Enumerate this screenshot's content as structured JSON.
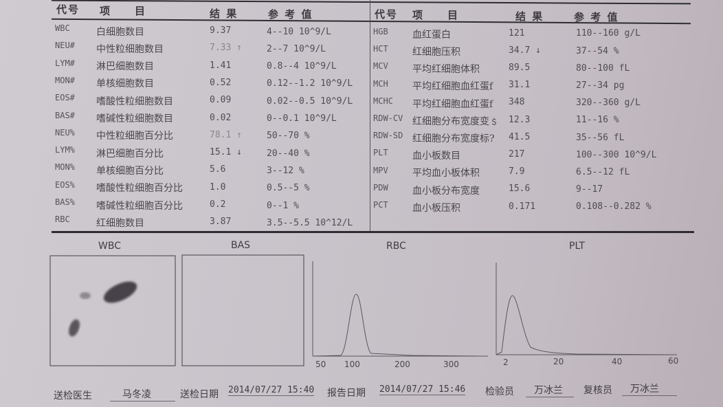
{
  "headers": {
    "code": "代号",
    "item": "项　　目",
    "result": "结 果",
    "reference": "参 考 值"
  },
  "left_rows": [
    {
      "code": "WBC",
      "item": "白细胞数目",
      "result": "9.37",
      "ref": "4--10 10^9/L"
    },
    {
      "code": "NEU#",
      "item": "中性粒细胞数目",
      "result": "7.33 ↑",
      "ref": "2--7 10^9/L",
      "flag": "high"
    },
    {
      "code": "LYM#",
      "item": "淋巴细胞数目",
      "result": "1.41",
      "ref": "0.8--4 10^9/L"
    },
    {
      "code": "MON#",
      "item": "单核细胞数目",
      "result": "0.52",
      "ref": "0.12--1.2 10^9/L"
    },
    {
      "code": "EOS#",
      "item": "嗜酸性粒细胞数目",
      "result": "0.09",
      "ref": "0.02--0.5 10^9/L"
    },
    {
      "code": "BAS#",
      "item": "嗜碱性粒细胞数目",
      "result": "0.02",
      "ref": "0--0.1 10^9/L"
    },
    {
      "code": "NEU%",
      "item": "中性粒细胞百分比",
      "result": "78.1 ↑",
      "ref": "50--70 %",
      "flag": "high"
    },
    {
      "code": "LYM%",
      "item": "淋巴细胞百分比",
      "result": "15.1 ↓",
      "ref": "20--40 %",
      "flag": "low"
    },
    {
      "code": "MON%",
      "item": "单核细胞百分比",
      "result": "5.6",
      "ref": "3--12 %"
    },
    {
      "code": "EOS%",
      "item": "嗜酸性粒细胞百分比",
      "result": "1.0",
      "ref": "0.5--5 %"
    },
    {
      "code": "BAS%",
      "item": "嗜碱性粒细胞百分比",
      "result": "0.2",
      "ref": "0--1 %"
    },
    {
      "code": "RBC",
      "item": "红细胞数目",
      "result": "3.87",
      "ref": "3.5--5.5 10^12/L"
    }
  ],
  "right_rows": [
    {
      "code": "HGB",
      "item": "血红蛋白",
      "result": "121",
      "ref": "110--160 g/L"
    },
    {
      "code": "HCT",
      "item": "红细胞压积",
      "result": "34.7 ↓",
      "ref": "37--54 %",
      "flag": "low"
    },
    {
      "code": "MCV",
      "item": "平均红细胞体积",
      "result": "89.5",
      "ref": "80--100 fL"
    },
    {
      "code": "MCH",
      "item": "平均红细胞血红蛋f",
      "result": "31.1",
      "ref": "27--34 pg"
    },
    {
      "code": "MCHC",
      "item": "平均红细胞血红蛋f",
      "result": "348",
      "ref": "320--360 g/L"
    },
    {
      "code": "RDW-CV",
      "item": "红细胞分布宽度变﹩",
      "result": "12.3",
      "ref": "11--16 %"
    },
    {
      "code": "RDW-SD",
      "item": "红细胞分布宽度标?",
      "result": "41.5",
      "ref": "35--56 fL"
    },
    {
      "code": "PLT",
      "item": "血小板数目",
      "result": "217",
      "ref": "100--300 10^9/L"
    },
    {
      "code": "MPV",
      "item": "平均血小板体积",
      "result": "7.9",
      "ref": "6.5--12 fL"
    },
    {
      "code": "PDW",
      "item": "血小板分布宽度",
      "result": "15.6",
      "ref": "9--17"
    },
    {
      "code": "PCT",
      "item": "血小板压积",
      "result": "0.171",
      "ref": "0.108--0.282 %"
    }
  ],
  "plots": {
    "wbc": {
      "title": "WBC"
    },
    "bas": {
      "title": "BAS"
    },
    "rbc": {
      "title": "RBC",
      "ticks": [
        "50",
        "100",
        "200",
        "300"
      ]
    },
    "plt": {
      "title": "PLT",
      "ticks": [
        "2",
        "20",
        "40",
        "60"
      ]
    }
  },
  "footer": {
    "doctor_label": "送检医生",
    "doctor": "马冬凌",
    "send_date_label": "送检日期",
    "send_date": "2014/07/27  15:40",
    "report_date_label": "报告日期",
    "report_date": "2014/07/27  15:46",
    "tester_label": "检验员",
    "tester": "万冰兰",
    "reviewer_label": "复核员",
    "reviewer": "万冰兰"
  }
}
